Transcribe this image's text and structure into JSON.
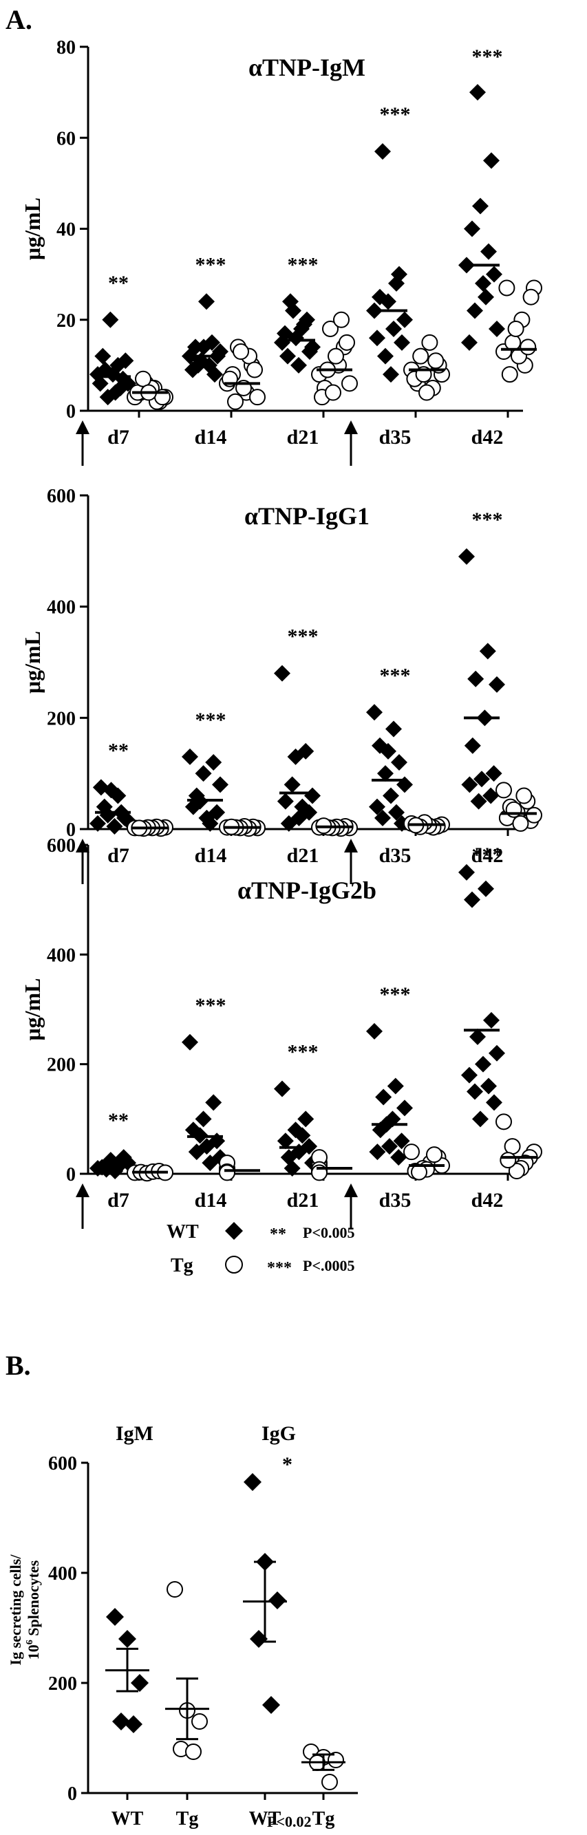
{
  "colors": {
    "ink": "#000000",
    "open_fill": "#ffffff"
  },
  "panels": {
    "A": {
      "label": "A."
    },
    "B": {
      "label": "B."
    }
  },
  "legend": {
    "wt_label": "WT",
    "tg_label": "Tg",
    "sig2_stars": "**",
    "sig2_text": "P<0.005",
    "sig3_stars": "***",
    "sig3_text": "P<.0005"
  },
  "chart_data": [
    {
      "type": "scatter",
      "title": "αTNP-IgM",
      "ylabel": "μg/mL",
      "ylim": [
        0,
        80
      ],
      "yticks": [
        0,
        20,
        40,
        60,
        80
      ],
      "categories": [
        "d7",
        "d14",
        "d21",
        "d35",
        "d42"
      ],
      "immunization_arrows_before": [
        "d7",
        "d35"
      ],
      "significance": [
        "**",
        "***",
        "***",
        "***",
        "***"
      ],
      "series": [
        {
          "name": "WT",
          "marker": "filled-diamond",
          "points": [
            [
              8,
              4,
              6,
              10,
              12,
              5,
              9,
              7,
              3,
              11,
              20,
              6,
              8
            ],
            [
              12,
              10,
              14,
              8,
              11,
              13,
              24,
              9,
              15,
              10,
              12,
              14
            ],
            [
              15,
              18,
              12,
              20,
              22,
              14,
              10,
              17,
              19,
              24,
              13,
              16
            ],
            [
              22,
              18,
              25,
              30,
              12,
              20,
              8,
              16,
              28,
              57,
              15,
              24
            ],
            [
              32,
              25,
              40,
              55,
              70,
              18,
              28,
              15,
              35,
              22,
              30,
              45
            ]
          ],
          "means": [
            7.5,
            12,
            15.5,
            22,
            32
          ]
        },
        {
          "name": "Tg",
          "marker": "open-circle",
          "points": [
            [
              3,
              5,
              4,
              2,
              6,
              3,
              5,
              4,
              2,
              7,
              3,
              4
            ],
            [
              6,
              4,
              8,
              10,
              14,
              3,
              5,
              7,
              12,
              2,
              9,
              13
            ],
            [
              8,
              10,
              5,
              14,
              18,
              6,
              12,
              3,
              20,
              9,
              15,
              4
            ],
            [
              9,
              5,
              12,
              8,
              15,
              6,
              10,
              4,
              7,
              11,
              8
            ],
            [
              13,
              10,
              15,
              27,
              20,
              8,
              25,
              12,
              27,
              14,
              18
            ]
          ],
          "means": [
            4,
            6,
            9,
            9,
            13.5
          ]
        }
      ]
    },
    {
      "type": "scatter",
      "title": "αTNP-IgG1",
      "ylabel": "μg/mL",
      "ylim": [
        0,
        600
      ],
      "yticks": [
        0,
        200,
        400,
        600
      ],
      "categories": [
        "d7",
        "d14",
        "d21",
        "d35",
        "d42"
      ],
      "immunization_arrows_before": [
        "d7",
        "d35"
      ],
      "significance": [
        "**",
        "***",
        "***",
        "***",
        "***"
      ],
      "series": [
        {
          "name": "WT",
          "marker": "filled-diamond",
          "points": [
            [
              10,
              30,
              70,
              75,
              20,
              5,
              40,
              15,
              60,
              25
            ],
            [
              130,
              120,
              100,
              40,
              30,
              20,
              60,
              80,
              10,
              50
            ],
            [
              280,
              140,
              130,
              50,
              30,
              20,
              10,
              60,
              40,
              80
            ],
            [
              210,
              180,
              150,
              120,
              100,
              80,
              60,
              40,
              30,
              20,
              10,
              140
            ],
            [
              490,
              320,
              270,
              260,
              200,
              150,
              100,
              90,
              80,
              60,
              50
            ]
          ],
          "means": [
            30,
            52,
            65,
            88,
            200
          ]
        },
        {
          "name": "Tg",
          "marker": "open-circle",
          "points": [
            [
              2,
              3,
              1,
              4,
              2,
              3,
              1,
              2
            ],
            [
              3,
              2,
              4,
              1,
              5,
              2,
              3,
              4
            ],
            [
              3,
              2,
              5,
              1,
              4,
              2,
              3,
              6
            ],
            [
              10,
              8,
              5,
              3,
              6,
              12,
              4,
              7
            ],
            [
              70,
              50,
              30,
              20,
              15,
              10,
              40,
              25,
              60,
              35
            ]
          ],
          "means": [
            2,
            3,
            4,
            8,
            28
          ]
        }
      ]
    },
    {
      "type": "scatter",
      "title": "αTNP-IgG2b",
      "ylabel": "μg/mL",
      "ylim": [
        0,
        600
      ],
      "yticks": [
        0,
        200,
        400,
        600
      ],
      "categories": [
        "d7",
        "d14",
        "d21",
        "d35",
        "d42"
      ],
      "immunization_arrows_before": [
        "d7",
        "d35"
      ],
      "significance": [
        "**",
        "***",
        "***",
        "***",
        "***"
      ],
      "series": [
        {
          "name": "WT",
          "marker": "filled-diamond",
          "points": [
            [
              10,
              20,
              30,
              15,
              5,
              25,
              8,
              12
            ],
            [
              240,
              130,
              100,
              80,
              60,
              50,
              40,
              30,
              20,
              70
            ],
            [
              155,
              100,
              80,
              60,
              50,
              40,
              30,
              20,
              70,
              10
            ],
            [
              260,
              160,
              140,
              120,
              100,
              80,
              60,
              50,
              40,
              30,
              90
            ],
            [
              550,
              520,
              500,
              280,
              250,
              220,
              200,
              180,
              160,
              150,
              130,
              100
            ]
          ],
          "means": [
            15,
            68,
            48,
            90,
            262
          ]
        },
        {
          "name": "Tg",
          "marker": "open-circle",
          "points": [
            [
              2,
              3,
              1,
              4,
              5,
              2
            ],
            [
              5,
              3,
              8,
              10,
              20,
              4,
              2
            ],
            [
              20,
              10,
              5,
              15,
              30,
              8,
              2
            ],
            [
              40,
              30,
              20,
              10,
              5,
              15,
              35,
              8,
              3
            ],
            [
              95,
              40,
              30,
              20,
              10,
              5,
              50,
              25
            ]
          ],
          "means": [
            3,
            6,
            10,
            15,
            30
          ]
        }
      ]
    },
    {
      "type": "scatter",
      "ylabel_line1": "Ig secreting cells/",
      "ylabel_line2_base": "10",
      "ylabel_line2_sup": "6",
      "ylabel_line2_rest": " Splenocytes",
      "ylim": [
        0,
        600
      ],
      "yticks": [
        0,
        200,
        400,
        600
      ],
      "group_labels": [
        "IgM",
        "IgG"
      ],
      "categories": [
        "WT",
        "Tg",
        "WT",
        "Tg"
      ],
      "significance_mark": "*",
      "pvalue_note": "P<0.02",
      "series": [
        {
          "name": "IgM WT",
          "marker": "filled-diamond",
          "points": [
            320,
            280,
            200,
            130,
            125
          ],
          "mean": 223,
          "sem_low": 185,
          "sem_high": 262
        },
        {
          "name": "IgM Tg",
          "marker": "open-circle",
          "points": [
            370,
            150,
            130,
            80,
            75
          ],
          "mean": 153,
          "sem_low": 98,
          "sem_high": 208
        },
        {
          "name": "IgG WT",
          "marker": "filled-diamond",
          "points": [
            565,
            420,
            350,
            280,
            160
          ],
          "mean": 348,
          "sem_low": 275,
          "sem_high": 420
        },
        {
          "name": "IgG Tg",
          "marker": "open-circle",
          "points": [
            75,
            65,
            60,
            55,
            20
          ],
          "mean": 56,
          "sem_low": 42,
          "sem_high": 70
        }
      ]
    }
  ]
}
